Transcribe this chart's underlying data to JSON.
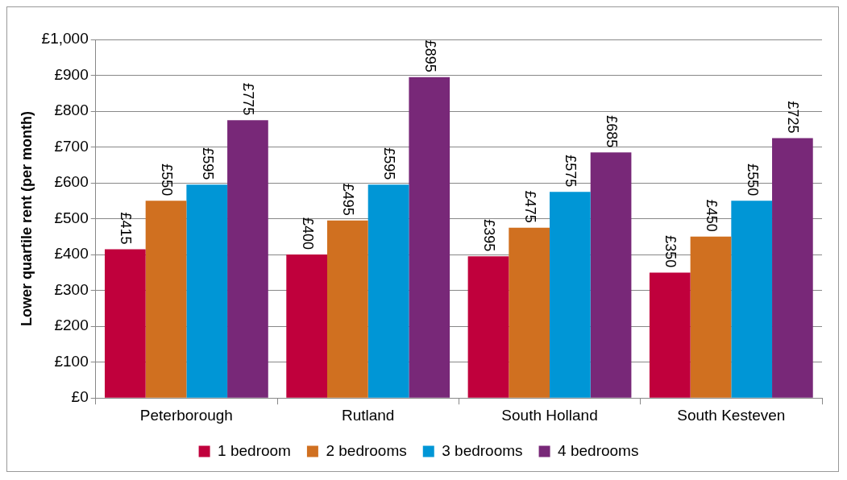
{
  "chart_data": {
    "type": "bar",
    "ylabel": "Lower quartile rent (per month)",
    "categories": [
      "Peterborough",
      "Rutland",
      "South Holland",
      "South Kesteven"
    ],
    "series": [
      {
        "name": "1 bedroom",
        "color": "#c0003c",
        "values": [
          415,
          400,
          395,
          350
        ],
        "value_labels": [
          "£415",
          "£400",
          "£395",
          "£350"
        ]
      },
      {
        "name": "2 bedrooms",
        "color": "#d07020",
        "values": [
          550,
          495,
          475,
          450
        ],
        "value_labels": [
          "£550",
          "£495",
          "£475",
          "£450"
        ]
      },
      {
        "name": "3 bedrooms",
        "color": "#0096d6",
        "values": [
          595,
          595,
          575,
          550
        ],
        "value_labels": [
          "£595",
          "£595",
          "£575",
          "£550"
        ]
      },
      {
        "name": "4 bedrooms",
        "color": "#782878",
        "values": [
          775,
          895,
          685,
          725
        ],
        "value_labels": [
          "£775",
          "£895",
          "£685",
          "£725"
        ]
      }
    ],
    "ylim": [
      0,
      1000
    ],
    "yticks": [
      {
        "value": 0,
        "label": "£0"
      },
      {
        "value": 100,
        "label": "£100"
      },
      {
        "value": 200,
        "label": "£200"
      },
      {
        "value": 300,
        "label": "£300"
      },
      {
        "value": 400,
        "label": "£400"
      },
      {
        "value": 500,
        "label": "£500"
      },
      {
        "value": 600,
        "label": "£600"
      },
      {
        "value": 700,
        "label": "£700"
      },
      {
        "value": 800,
        "label": "£800"
      },
      {
        "value": 900,
        "label": "£900"
      },
      {
        "value": 1000,
        "label": "£1,000"
      }
    ],
    "grid": "y",
    "legend": "bottom"
  }
}
